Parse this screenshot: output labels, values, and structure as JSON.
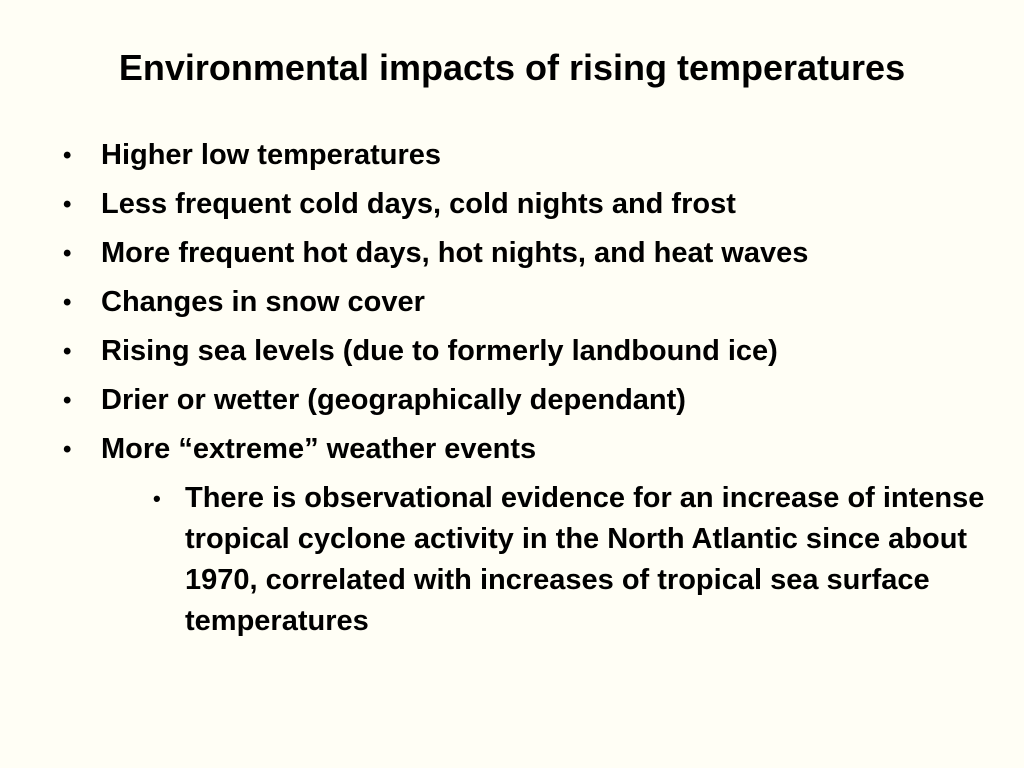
{
  "slide": {
    "title": "Environmental impacts of rising temperatures",
    "bullet_symbol": "•",
    "bullets": [
      "Higher low temperatures",
      "Less frequent cold days, cold nights and frost",
      "More frequent hot days, hot nights, and heat waves",
      "Changes in snow cover",
      "Rising sea levels (due to formerly landbound ice)",
      "Drier or wetter (geographically dependant)",
      "More “extreme” weather events"
    ],
    "sub_bullets": [
      "There is observational evidence for an increase of intense tropical cyclone activity in the North Atlantic since about 1970, correlated with increases of tropical sea surface temperatures"
    ],
    "colors": {
      "background": "#fffef5",
      "text": "#000000"
    }
  }
}
